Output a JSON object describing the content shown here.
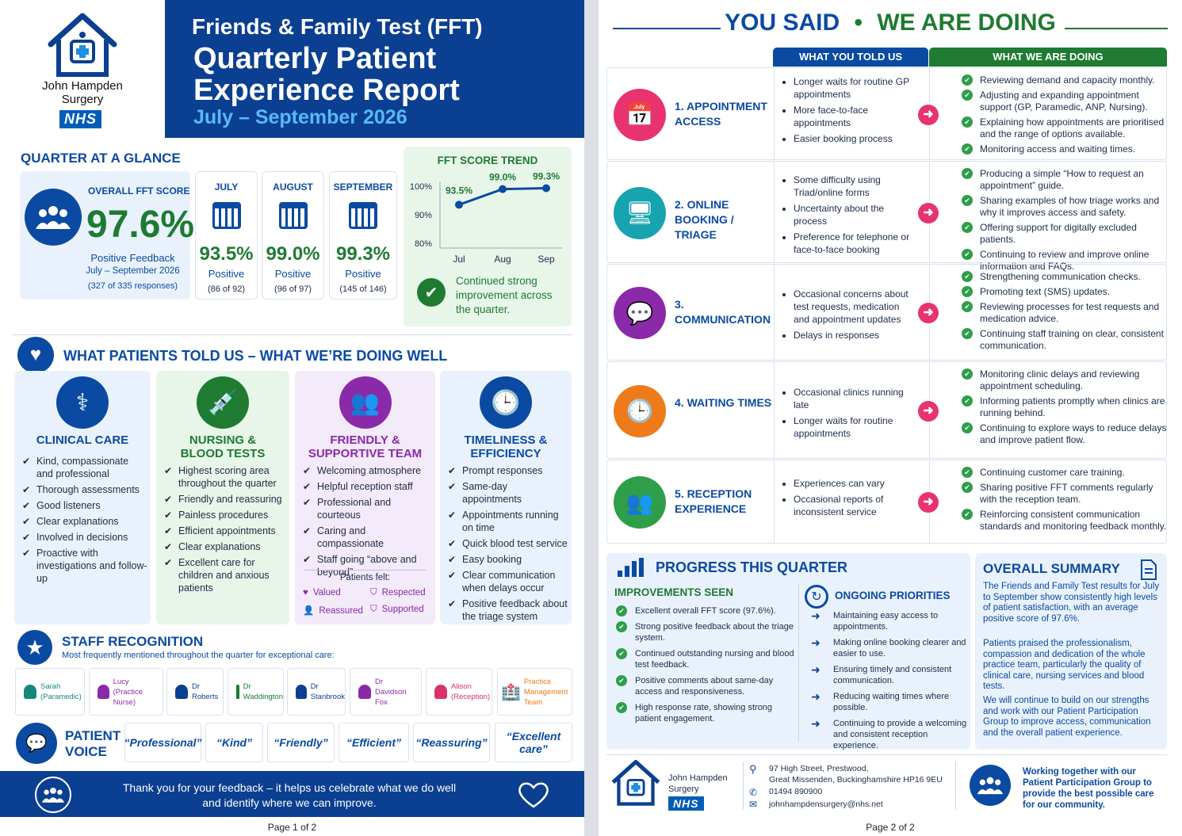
{
  "page1": {
    "logo": {
      "name_line1": "John Hampden",
      "name_line2": "Surgery",
      "nhs": "NHS"
    },
    "header": {
      "line1": "Friends & Family Test (FFT)",
      "line2": "Quarterly Patient",
      "line3": "Experience Report",
      "period": "July – September 2026"
    },
    "glance": {
      "title": "QUARTER AT A GLANCE",
      "overall_label": "OVERALL FFT SCORE",
      "overall_value": "97.6%",
      "overall_sub": "Positive Feedback",
      "overall_period": "July – September 2026",
      "overall_count": "(327 of 335 responses)",
      "months": [
        {
          "name": "JULY",
          "value": "93.5%",
          "label": "Positive",
          "count": "(86 of 92)"
        },
        {
          "name": "AUGUST",
          "value": "99.0%",
          "label": "Positive",
          "count": "(96 of 97)"
        },
        {
          "name": "SEPTEMBER",
          "value": "99.3%",
          "label": "Positive",
          "count": "(145 of 146)"
        }
      ]
    },
    "trend": {
      "title": "FFT SCORE TREND",
      "note": "Continued strong improvement across the quarter."
    },
    "chart_data": {
      "type": "line",
      "title": "FFT SCORE TREND",
      "categories": [
        "Jul",
        "Aug",
        "Sep"
      ],
      "series": [
        {
          "values": [
            93.5,
            99.0,
            99.3
          ]
        }
      ],
      "data_labels": [
        "93.5%",
        "99.0%",
        "99.3%"
      ],
      "ylim": [
        80,
        100
      ],
      "yticks": [
        "100%",
        "90%",
        "80%"
      ],
      "grid": false
    },
    "well": {
      "title": "WHAT PATIENTS TOLD US – WHAT WE’RE DOING WELL",
      "cats": [
        {
          "title1": "CLINICAL CARE",
          "title2": "",
          "color": "#0b4aa2",
          "items": [
            "Kind, compassionate and professional",
            "Thorough assessments",
            "Good listeners",
            "Clear explanations",
            "Involved in decisions",
            "Proactive with investigations and follow-up"
          ]
        },
        {
          "title1": "NURSING &",
          "title2": "BLOOD TESTS",
          "color": "#1f7a32",
          "items": [
            "Highest scoring area throughout the quarter",
            "Friendly and reassuring",
            "Painless procedures",
            "Efficient appointments",
            "Clear explanations",
            "Excellent care for children and anxious patients"
          ]
        },
        {
          "title1": "FRIENDLY &",
          "title2": "SUPPORTIVE TEAM",
          "color": "#8a2aa8",
          "items": [
            "Welcoming atmosphere",
            "Helpful reception staff",
            "Professional and courteous",
            "Caring and compassionate",
            "Staff going “above and beyond”"
          ]
        },
        {
          "title1": "TIMELINESS &",
          "title2": "EFFICIENCY",
          "color": "#0b4aa2",
          "items": [
            "Prompt responses",
            "Same-day appointments",
            "Appointments running on time",
            "Quick blood test service",
            "Easy booking",
            "Clear communication when delays occur",
            "Positive feedback about the triage system"
          ]
        }
      ],
      "felt_title": "Patients felt:",
      "felt": [
        "Valued",
        "Respected",
        "Reassured",
        "Supported"
      ]
    },
    "staff": {
      "title": "STAFF RECOGNITION",
      "subtitle": "Most frequently mentioned throughout the quarter for exceptional care:",
      "people": [
        {
          "n1": "Sarah",
          "n2": "(Paramedic)",
          "c": "#14897a"
        },
        {
          "n1": "Lucy",
          "n2": "(Practice Nurse)",
          "c": "#8a2aa8"
        },
        {
          "n1": "Dr",
          "n2": "Roberts",
          "c": "#0b3f91"
        },
        {
          "n1": "Dr",
          "n2": "Waddington",
          "c": "#1f7a32"
        },
        {
          "n1": "Dr",
          "n2": "Stanbrook",
          "c": "#0b3f91"
        },
        {
          "n1": "Dr",
          "n2": "Davidson Fox",
          "c": "#8a2aa8"
        },
        {
          "n1": "Alison",
          "n2": "(Reception)",
          "c": "#d9326a"
        },
        {
          "n1": "Practice",
          "n2": "Management Team",
          "c": "#ef7a1a"
        }
      ]
    },
    "voice": {
      "title1": "PATIENT",
      "title2": "VOICE",
      "quotes": [
        "“Professional”",
        "“Kind”",
        "“Friendly”",
        "“Efficient”",
        "“Reassuring”",
        "“Excellent care”"
      ]
    },
    "footer": {
      "line1": "Thank you for your feedback – it helps us celebrate what we do well",
      "line2": "and identify where we can improve."
    },
    "page_num": "Page 1 of 2"
  },
  "page2": {
    "title_left": "YOU SAID",
    "title_dot": "•",
    "title_right": "WE ARE DOING",
    "col_told": "WHAT YOU TOLD US",
    "col_doing": "WHAT WE ARE DOING",
    "rows": [
      {
        "label": "1. APPOINTMENT ACCESS",
        "color": "#e8336f",
        "icon": "calendar-icon",
        "told": [
          "Longer waits for routine GP appointments",
          "More face-to-face appointments",
          "Easier booking process"
        ],
        "doing": [
          "Reviewing demand and capacity monthly.",
          "Adjusting and expanding appointment support (GP, Paramedic, ANP, Nursing).",
          "Explaining how appointments are prioritised and the range of options available.",
          "Monitoring access and waiting times."
        ]
      },
      {
        "label": "2. ONLINE BOOKING / TRIAGE",
        "color": "#17a3b0",
        "icon": "monitor-icon",
        "told": [
          "Some difficulty using Triad/online forms",
          "Uncertainty about the process",
          "Preference for telephone or face-to-face booking"
        ],
        "doing": [
          "Producing a simple “How to request an appointment” guide.",
          "Sharing examples of how triage works and why it improves access and safety.",
          "Offering support for digitally excluded patients.",
          "Continuing to review and improve online information and FAQs."
        ]
      },
      {
        "label": "3. COMMUNICATION",
        "color": "#8a2aa8",
        "icon": "chat-icon",
        "told": [
          "Occasional concerns about test requests, medication and appointment updates",
          "Delays in responses"
        ],
        "doing": [
          "Strengthening communication checks.",
          "Promoting text (SMS) updates.",
          "Reviewing processes for test requests and medication advice.",
          "Continuing staff training on clear, consistent communication."
        ]
      },
      {
        "label": "4. WAITING TIMES",
        "color": "#ef7a1a",
        "icon": "clock-icon",
        "told": [
          "Occasional clinics running late",
          "Longer waits for routine appointments"
        ],
        "doing": [
          "Monitoring clinic delays and reviewing appointment scheduling.",
          "Informing patients promptly when clinics are running behind.",
          "Continuing to explore ways to reduce delays and improve patient flow."
        ]
      },
      {
        "label": "5. RECEPTION EXPERIENCE",
        "color": "#2e9e4a",
        "icon": "reception-icon",
        "told": [
          "Experiences can vary",
          "Occasional reports of inconsistent service"
        ],
        "doing": [
          "Continuing customer care training.",
          "Sharing positive FFT comments regularly with the reception team.",
          "Reinforcing consistent communication standards and monitoring feedback monthly."
        ]
      }
    ],
    "progress": {
      "title": "PROGRESS THIS QUARTER",
      "imp_title": "IMPROVEMENTS SEEN",
      "improvements": [
        "Excellent overall FFT score (97.6%).",
        "Strong positive feedback about the triage system.",
        "Continued outstanding nursing and blood test feedback.",
        "Positive comments about same-day access and responsiveness.",
        "High response rate, showing strong patient engagement."
      ],
      "ong_title": "ONGOING PRIORITIES",
      "ongoing": [
        "Maintaining easy access to appointments.",
        "Making online booking clearer and easier to use.",
        "Ensuring timely and consistent communication.",
        "Reducing waiting times where possible.",
        "Continuing to provide a welcoming and consistent reception experience."
      ]
    },
    "summary": {
      "title": "OVERALL SUMMARY",
      "p1": "The Friends and Family Test results for July to September show consistently high levels of patient satisfaction, with an average positive score of 97.6%.",
      "p2": "Patients praised the professionalism, compassion and dedication of the whole practice team, particularly the quality of clinical care, nursing services and blood tests.",
      "p3": "We will continue to build on our strengths and work with our Patient Participation Group to improve access, communication and the overall patient experience."
    },
    "footer": {
      "name1": "John Hampden",
      "name2": "Surgery",
      "nhs": "NHS",
      "addr1": "97 High Street, Prestwood,",
      "addr2": "Great Missenden, Buckinghamshire HP16 9EU",
      "phone": "01494 890900",
      "email": "johnhampdensurgery@nhs.net",
      "ppg": "Working together with our Patient Participation Group to provide the best possible care for our community."
    },
    "page_num": "Page 2 of 2"
  }
}
